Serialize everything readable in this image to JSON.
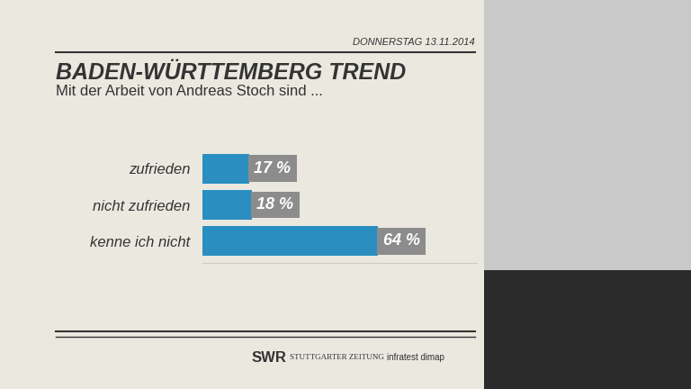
{
  "chart_data": {
    "type": "bar",
    "orientation": "horizontal",
    "title": "BADEN-WÜRTTEMBERG TREND",
    "subtitle": "Mit der Arbeit von Andreas Stoch sind ...",
    "annotations": [
      "DONNERSTAG 13.11.2014",
      "SWR",
      "STUTTGARTER ZEITUNG",
      "infratest dimap"
    ],
    "categories": [
      "zufrieden",
      "nicht zufrieden",
      "kenne ich nicht"
    ],
    "values": [
      17,
      18,
      64
    ],
    "value_labels": [
      "17 %",
      "18 %",
      "64 %"
    ],
    "data_labels": true,
    "color": "#2a8fc0",
    "xlim": [
      0,
      100
    ],
    "xticks": [],
    "tick_labels": "y",
    "grid": false
  }
}
